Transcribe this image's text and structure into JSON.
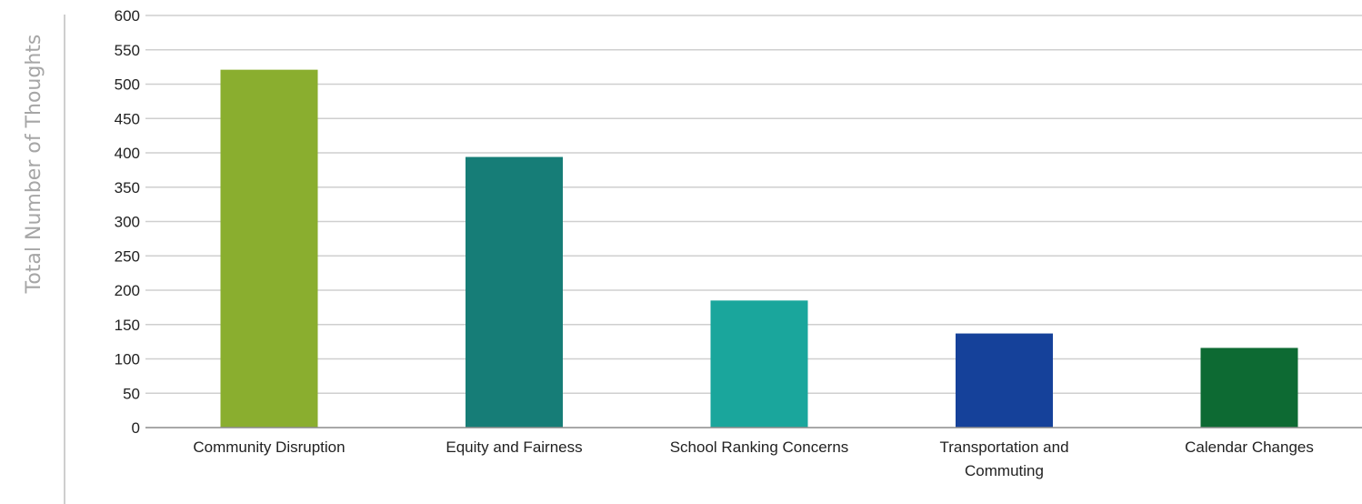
{
  "chart_data": {
    "type": "bar",
    "title": "",
    "xlabel": "",
    "ylabel": "Total Number of Thoughts",
    "ylim": [
      0,
      600
    ],
    "yticks": [
      0,
      50,
      100,
      150,
      200,
      250,
      300,
      350,
      400,
      450,
      500,
      550,
      600
    ],
    "grid": true,
    "categories": [
      [
        "Community Disruption"
      ],
      [
        "Equity and Fairness"
      ],
      [
        "School Ranking Concerns"
      ],
      [
        "Transportation and",
        "Commuting"
      ],
      [
        "Calendar Changes"
      ]
    ],
    "values": [
      521,
      394,
      185,
      137,
      116
    ],
    "colors": [
      "#8aae2f",
      "#167d77",
      "#1aa69c",
      "#15419a",
      "#0d6a33"
    ]
  }
}
